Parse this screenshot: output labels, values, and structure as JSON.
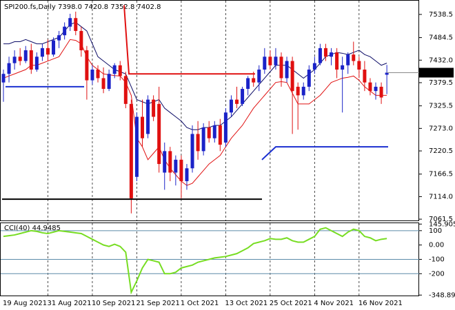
{
  "chart_data": {
    "type": "candlestick",
    "title": "SPI200.fs,Daily  7398.0 7420.8 7352.8 7402.8",
    "categories": [
      "19 Aug 2021",
      null,
      null,
      null,
      null,
      null,
      null,
      null,
      "31 Aug 2021",
      null,
      null,
      null,
      null,
      null,
      null,
      null,
      "10 Sep 2021",
      null,
      null,
      null,
      null,
      null,
      null,
      null,
      "21 Sep 2021",
      null,
      null,
      null,
      null,
      null,
      null,
      null,
      "1 Oct 2021",
      null,
      null,
      null,
      null,
      null,
      null,
      null,
      "13 Oct 2021",
      null,
      null,
      null,
      null,
      null,
      null,
      null,
      "25 Oct 2021",
      null,
      null,
      null,
      null,
      null,
      null,
      null,
      "4 Nov 2021",
      null,
      null,
      null,
      null,
      null,
      null,
      null,
      "16 Nov 2021",
      null,
      null,
      null,
      null,
      null
    ],
    "open": [
      7380,
      7400,
      7425,
      7440,
      7430,
      7455,
      7410,
      7440,
      7460,
      7445,
      7478,
      7490,
      7510,
      7530,
      7500,
      7455,
      7385,
      7410,
      7390,
      7365,
      7400,
      7420,
      7395,
      7330,
      7160,
      7300,
      7260,
      7340,
      7330,
      7170,
      7220,
      7170,
      7200,
      7150,
      7180,
      7260,
      7220,
      7275,
      7250,
      7280,
      7240,
      7310,
      7340,
      7330,
      7365,
      7390,
      7380,
      7410,
      7440,
      7420,
      7440,
      7390,
      7430,
      7370,
      7350,
      7370,
      7410,
      7425,
      7460,
      7440,
      7450,
      7410,
      7420,
      7445,
      7430,
      7410,
      7380,
      7360,
      7370,
      7398.0
    ],
    "high": [
      7410,
      7440,
      7455,
      7460,
      7465,
      7470,
      7450,
      7470,
      7480,
      7485,
      7500,
      7520,
      7540,
      7545,
      7510,
      7465,
      7420,
      7420,
      7415,
      7410,
      7425,
      7430,
      7405,
      7340,
      7310,
      7340,
      7350,
      7350,
      7370,
      7240,
      7230,
      7210,
      7210,
      7190,
      7280,
      7290,
      7285,
      7290,
      7290,
      7295,
      7320,
      7350,
      7370,
      7370,
      7395,
      7405,
      7420,
      7460,
      7455,
      7460,
      7450,
      7440,
      7440,
      7380,
      7380,
      7420,
      7440,
      7470,
      7470,
      7460,
      7460,
      7440,
      7450,
      7475,
      7440,
      7430,
      7390,
      7380,
      7380,
      7420.8
    ],
    "low": [
      7335,
      7380,
      7410,
      7420,
      7425,
      7400,
      7405,
      7430,
      7430,
      7440,
      7460,
      7480,
      7500,
      7490,
      7440,
      7340,
      7375,
      7380,
      7355,
      7360,
      7390,
      7385,
      7320,
      7075,
      7150,
      7230,
      7250,
      7290,
      7170,
      7130,
      7150,
      7140,
      7110,
      7130,
      7170,
      7200,
      7210,
      7240,
      7240,
      7220,
      7230,
      7300,
      7320,
      7325,
      7350,
      7370,
      7360,
      7400,
      7410,
      7410,
      7370,
      7380,
      7260,
      7270,
      7340,
      7360,
      7400,
      7420,
      7430,
      7420,
      7390,
      7310,
      7400,
      7420,
      7390,
      7360,
      7350,
      7340,
      7330,
      7352.8
    ],
    "close": [
      7400,
      7425,
      7440,
      7430,
      7455,
      7410,
      7440,
      7460,
      7445,
      7478,
      7490,
      7510,
      7530,
      7500,
      7455,
      7385,
      7410,
      7390,
      7365,
      7400,
      7420,
      7395,
      7330,
      7110,
      7300,
      7250,
      7340,
      7300,
      7190,
      7220,
      7170,
      7200,
      7150,
      7180,
      7260,
      7220,
      7275,
      7250,
      7280,
      7235,
      7310,
      7340,
      7330,
      7365,
      7390,
      7380,
      7410,
      7440,
      7420,
      7440,
      7390,
      7430,
      7360,
      7350,
      7370,
      7410,
      7425,
      7460,
      7440,
      7450,
      7410,
      7420,
      7445,
      7430,
      7410,
      7380,
      7360,
      7370,
      7345,
      7402.8
    ],
    "up_color": "#1a22c8",
    "down_color": "#e01010",
    "series": [
      {
        "color": "#0b0b66",
        "values": [
          7470,
          7470,
          7475,
          7475,
          7480,
          7475,
          7470,
          7470,
          7475,
          7480,
          7485,
          7500,
          7515,
          7520,
          7510,
          7500,
          7470,
          7440,
          7430,
          7420,
          7410,
          7405,
          7400,
          7370,
          7340,
          7335,
          7330,
          7335,
          7340,
          7320,
          7310,
          7300,
          7290,
          7275,
          7270,
          7270,
          7275,
          7275,
          7280,
          7280,
          7290,
          7300,
          7315,
          7330,
          7345,
          7360,
          7375,
          7390,
          7405,
          7420,
          7420,
          7420,
          7410,
          7400,
          7390,
          7400,
          7410,
          7425,
          7440,
          7445,
          7450,
          7448,
          7445,
          7450,
          7455,
          7445,
          7440,
          7430,
          7420,
          7425
        ]
      },
      {
        "color": "#e01010",
        "values": [
          7390,
          7395,
          7400,
          7405,
          7410,
          7420,
          7420,
          7425,
          7430,
          7435,
          7440,
          7460,
          7480,
          7478,
          7470,
          7440,
          7420,
          7410,
          7400,
          7398,
          7396,
          7395,
          7380,
          7350,
          7250,
          7230,
          7200,
          7215,
          7230,
          7200,
          7180,
          7165,
          7150,
          7140,
          7145,
          7160,
          7175,
          7190,
          7200,
          7210,
          7230,
          7250,
          7265,
          7280,
          7300,
          7320,
          7335,
          7350,
          7365,
          7380,
          7382,
          7380,
          7355,
          7330,
          7330,
          7330,
          7340,
          7350,
          7365,
          7380,
          7385,
          7390,
          7392,
          7395,
          7385,
          7370,
          7360,
          7350,
          7350,
          7350
        ]
      }
    ],
    "lines": [
      {
        "color": "#000000",
        "values": [
          7108
        ]
      },
      {
        "color": "#e01010",
        "values": [
          7560,
          7400
        ]
      },
      {
        "color": "#1a2fd0",
        "values": [
          7370
        ]
      },
      {
        "color": "#1a2fd0",
        "values": [
          7200,
          7230
        ]
      }
    ],
    "last_price_label": "7402.8",
    "ylim": [
      7058.5,
      7570.5
    ],
    "yticks": [
      7538.5,
      7484.5,
      {
        "value": 7432,
        "label": "7432.0"
      },
      7379.5,
      7325.5,
      {
        "value": 7273,
        "label": "7273.0"
      },
      7220.5,
      7166.5,
      {
        "value": 7114,
        "label": "7114.0"
      },
      7061.5
    ],
    "grid": true,
    "indicator": {
      "type": "line",
      "title": "CCI(40) 44.9485",
      "color": "#77dd22",
      "values": [
        60,
        65,
        70,
        80,
        90,
        100,
        95,
        85,
        80,
        90,
        100,
        95,
        90,
        85,
        80,
        60,
        40,
        20,
        0,
        -10,
        5,
        -10,
        -50,
        -330,
        -250,
        -160,
        -100,
        -110,
        -120,
        -200,
        -200,
        -190,
        -160,
        -150,
        -140,
        -120,
        -110,
        -100,
        -90,
        -85,
        -80,
        -70,
        -60,
        -40,
        -20,
        10,
        20,
        30,
        45,
        40,
        40,
        50,
        30,
        20,
        20,
        40,
        60,
        110,
        120,
        100,
        80,
        60,
        90,
        110,
        100,
        60,
        50,
        30,
        40,
        44.9485
      ],
      "ylim": [
        -357,
        152
      ],
      "yticks": [
        145.905,
        100,
        {
          "value": 0,
          "label": "0.00"
        },
        -100,
        -200,
        -348.897
      ],
      "levels": [
        100,
        -100,
        -200
      ],
      "level_color": "#5a8aa8"
    }
  }
}
